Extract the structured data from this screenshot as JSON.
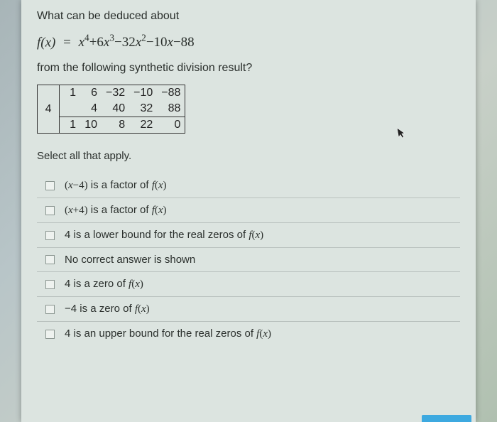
{
  "question": {
    "line1": "What can be deduced about",
    "equation_parts": {
      "fx": "f(x)",
      "equals": "=",
      "poly": "x⁴+6x³−32x²−10x−88"
    },
    "line2": "from the following synthetic division result?",
    "select_all": "Select all that apply."
  },
  "synthetic_division": {
    "divisor": "4",
    "row1": [
      "1",
      "6",
      "−32",
      "−10",
      "−88"
    ],
    "row2": [
      "",
      "4",
      "40",
      "32",
      "88"
    ],
    "row3": [
      "1",
      "10",
      "8",
      "22",
      "0"
    ]
  },
  "options": [
    {
      "html": "<span class='paren'>(</span><span class='math'>x</span><span class='paren'>−4)</span> is a factor of <span class='math'>f</span><span class='paren'>(</span><span class='math'>x</span><span class='paren'>)</span>"
    },
    {
      "html": "<span class='paren'>(</span><span class='math'>x</span><span class='paren'>+4)</span> is a factor of <span class='math'>f</span><span class='paren'>(</span><span class='math'>x</span><span class='paren'>)</span>"
    },
    {
      "html": "4 is a lower bound for the real zeros of <span class='math'>f</span><span class='paren'>(</span><span class='math'>x</span><span class='paren'>)</span>"
    },
    {
      "html": "No correct answer is shown"
    },
    {
      "html": "4 is a zero of <span class='math'>f</span><span class='paren'>(</span><span class='math'>x</span><span class='paren'>)</span>"
    },
    {
      "html": "−4 is a zero of <span class='math'>f</span><span class='paren'>(</span><span class='math'>x</span><span class='paren'>)</span>"
    },
    {
      "html": "4 is an upper bound for the real zeros of <span class='math'>f</span><span class='paren'>(</span><span class='math'>x</span><span class='paren'>)</span>"
    }
  ],
  "colors": {
    "page_bg": "#dce4e0",
    "text": "#2a2f2c",
    "border": "#333333",
    "checkbox_border": "#8a9590",
    "button": "#3da9e0"
  }
}
